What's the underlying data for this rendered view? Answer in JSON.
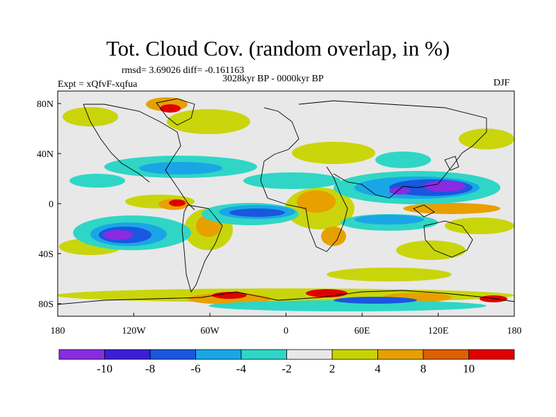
{
  "title": "Tot. Cloud Cov. (random overlap, in %)",
  "stats": "rmsd= 3.69026 diff= -0.161163",
  "period": "3028kyr BP - 0000kyr BP",
  "experiment": "Expt = xQfvF-xqfua",
  "season": "DJF",
  "x_ticks": [
    "180",
    "120W",
    "60W",
    "0",
    "60E",
    "120E",
    "180"
  ],
  "y_ticks": [
    "80N",
    "40N",
    "0",
    "40S",
    "80S"
  ],
  "colorbar": {
    "colors": [
      "#8a2be2",
      "#3a1fd6",
      "#1a56e0",
      "#1aa6e6",
      "#2fd6c6",
      "#e8e8e8",
      "#c8d400",
      "#e8a000",
      "#e06000",
      "#e00000"
    ],
    "labels": [
      "-10",
      "-8",
      "-6",
      "-4",
      "-2",
      "2",
      "4",
      "8",
      "10"
    ]
  },
  "background_color": "#e8e8e8",
  "coastline_color": "#000000"
}
